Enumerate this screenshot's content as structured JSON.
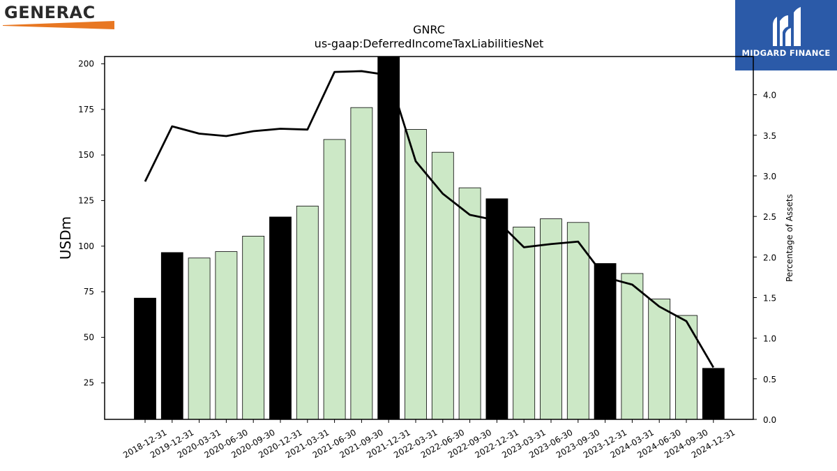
{
  "logos": {
    "left_text": "GENERAC",
    "left_mark": "generac-logo",
    "right_text": "MIDGARD FINANCE",
    "right_mark": "midgard-finance-logo",
    "right_bg": "#2b5aa8",
    "left_accent": "#e87722"
  },
  "chart_data": {
    "type": "bar",
    "title": "GNRC",
    "subtitle": "us-gaap:DeferredIncomeTaxLiabilitiesNet",
    "ylabel": "USDm",
    "y2label": "Percentage of Assets",
    "ylim": [
      5,
      204
    ],
    "y2lim": [
      0,
      4.47
    ],
    "yticks": [
      25,
      50,
      75,
      100,
      125,
      150,
      175,
      200
    ],
    "y2ticks": [
      "0.0",
      "0.5",
      "1.0",
      "1.5",
      "2.0",
      "2.5",
      "3.0",
      "3.5",
      "4.0"
    ],
    "categories": [
      "2018-12-31",
      "2019-12-31",
      "2020-03-31",
      "2020-06-30",
      "2020-09-30",
      "2020-12-31",
      "2021-03-31",
      "2021-06-30",
      "2021-09-30",
      "2021-12-31",
      "2022-03-31",
      "2022-06-30",
      "2022-09-30",
      "2022-12-31",
      "2023-03-31",
      "2023-06-30",
      "2023-09-30",
      "2023-12-31",
      "2024-03-31",
      "2024-06-30",
      "2024-09-30",
      "2024-12-31"
    ],
    "series": [
      {
        "type": "bar",
        "values": [
          71.5,
          96.5,
          93.5,
          97,
          105.5,
          116,
          122,
          158.5,
          176,
          204,
          164,
          151.5,
          132,
          126,
          110.5,
          115,
          113,
          90.5,
          85,
          71,
          62,
          33
        ]
      },
      {
        "type": "line",
        "axis": "right",
        "values": [
          2.93,
          3.61,
          3.52,
          3.49,
          3.55,
          3.58,
          3.57,
          4.28,
          4.29,
          4.24,
          3.18,
          2.78,
          2.52,
          2.45,
          2.12,
          2.16,
          2.19,
          1.75,
          1.66,
          1.39,
          1.21,
          0.64
        ]
      }
    ],
    "bar_colors": {
      "annual": "#000000",
      "quarterly": "#cce8c6"
    },
    "annual_flags": [
      true,
      true,
      false,
      false,
      false,
      true,
      false,
      false,
      false,
      true,
      false,
      false,
      false,
      true,
      false,
      false,
      false,
      true,
      false,
      false,
      false,
      true
    ],
    "line_color": "#000000",
    "grid": false
  }
}
